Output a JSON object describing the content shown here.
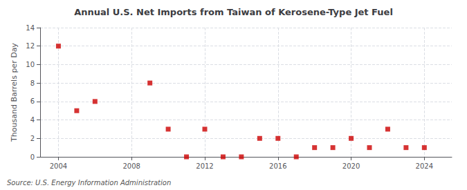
{
  "chart_data": {
    "type": "scatter",
    "title": "Annual U.S. Net Imports from Taiwan of Kerosene-Type Jet Fuel",
    "ylabel": "Thousand Barrels per Day",
    "source": "Source: U.S. Energy Information Administration",
    "color": "#cc0000",
    "marker": "square",
    "x": [
      2004,
      2005,
      2006,
      2009,
      2010,
      2011,
      2012,
      2013,
      2014,
      2015,
      2016,
      2017,
      2018,
      2019,
      2020,
      2021,
      2022,
      2023,
      2024
    ],
    "values": [
      12,
      5,
      6,
      8,
      3,
      0,
      3,
      0,
      0,
      2,
      2,
      0,
      1,
      1,
      2,
      1,
      3,
      1,
      1
    ],
    "xlim": [
      2003.0,
      2025.5
    ],
    "xticks": [
      2004,
      2008,
      2012,
      2016,
      2020,
      2024
    ],
    "ylim": [
      0,
      14
    ],
    "yticks": [
      0,
      2,
      4,
      6,
      8,
      10,
      12,
      14
    ],
    "grid": true
  }
}
